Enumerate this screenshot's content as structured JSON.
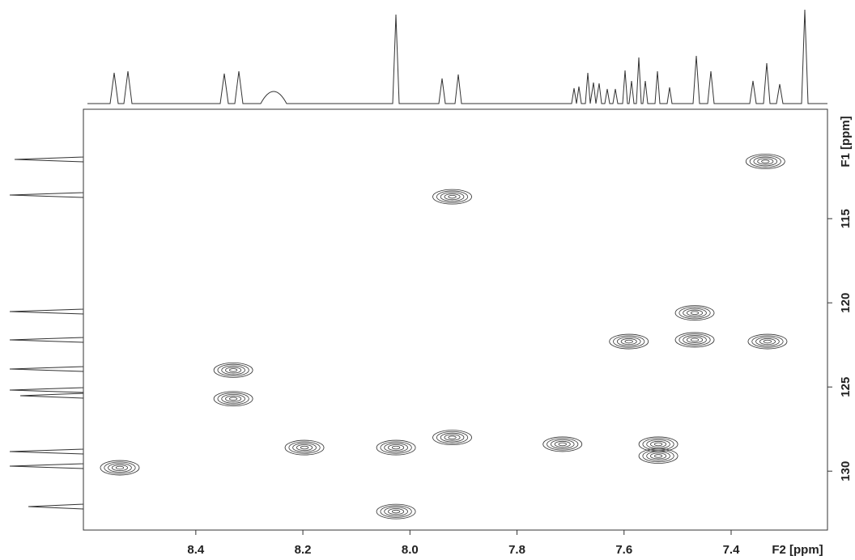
{
  "chart_data": {
    "type": "scatter",
    "x_label": "F2 [ppm]",
    "y_label": "F1 [ppm]",
    "xlim": [
      8.61,
      7.22
    ],
    "ylim": [
      108.5,
      133.5
    ],
    "xticks": [
      8.4,
      8.2,
      {
        "value": 8,
        "label": "8.0"
      },
      7.8,
      7.6,
      7.4
    ],
    "yticks": [
      115,
      120,
      125,
      130
    ],
    "color": "#333333",
    "series": [
      {
        "name": "cross peaks",
        "x": [
          7.336,
          7.921,
          7.468,
          7.468,
          7.591,
          7.332,
          8.33,
          8.33,
          8.026,
          7.921,
          7.715,
          7.536,
          7.536,
          8.542,
          8.026,
          8.197
        ],
        "values": [
          111.6,
          113.7,
          120.6,
          122.2,
          122.3,
          122.3,
          124.0,
          125.7,
          128.6,
          128.0,
          128.4,
          128.4,
          129.1,
          129.8,
          132.4,
          128.6
        ]
      }
    ]
  }
}
